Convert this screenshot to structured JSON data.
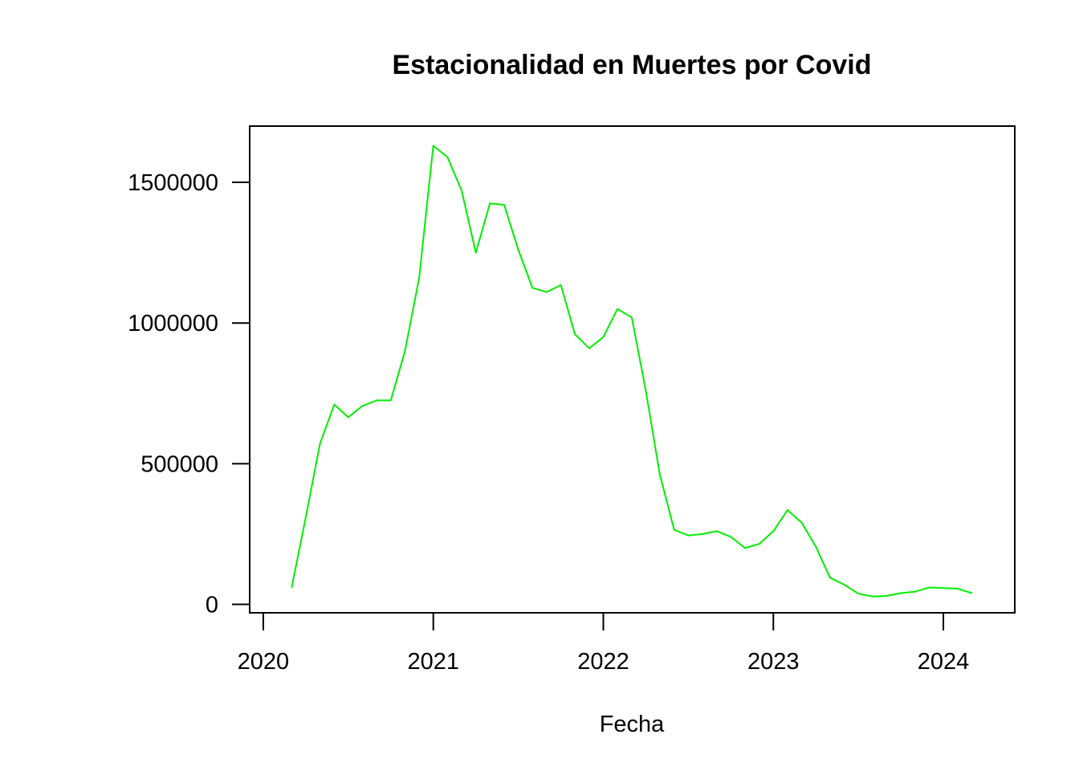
{
  "chart_data": {
    "type": "line",
    "title": "Estacionalidad en Muertes por Covid",
    "xlabel": "Fecha",
    "ylabel": "",
    "xlim": [
      2019.92,
      2024.42
    ],
    "ylim": [
      -30000,
      1700000
    ],
    "x_ticks": [
      2020,
      2021,
      2022,
      2023,
      2024
    ],
    "x_tick_labels": [
      "2020",
      "2021",
      "2022",
      "2023",
      "2024"
    ],
    "y_ticks": [
      0,
      500000,
      1000000,
      1500000
    ],
    "y_tick_labels": [
      "0",
      "500000",
      "1000000",
      "1500000"
    ],
    "grid": false,
    "series": [
      {
        "color": "#00ee00",
        "x": [
          2020.167,
          2020.25,
          2020.333,
          2020.417,
          2020.5,
          2020.583,
          2020.667,
          2020.75,
          2020.833,
          2020.917,
          2021.0,
          2021.083,
          2021.167,
          2021.25,
          2021.333,
          2021.417,
          2021.5,
          2021.583,
          2021.667,
          2021.75,
          2021.833,
          2021.917,
          2022.0,
          2022.083,
          2022.167,
          2022.25,
          2022.333,
          2022.417,
          2022.5,
          2022.583,
          2022.667,
          2022.75,
          2022.833,
          2022.917,
          2023.0,
          2023.083,
          2023.167,
          2023.25,
          2023.333,
          2023.417,
          2023.5,
          2023.583,
          2023.667,
          2023.75,
          2023.833,
          2023.917,
          2024.0,
          2024.083,
          2024.167
        ],
        "y": [
          60000,
          310000,
          570000,
          710000,
          665000,
          705000,
          725000,
          725000,
          900000,
          1160000,
          1630000,
          1590000,
          1470000,
          1250000,
          1425000,
          1420000,
          1260000,
          1125000,
          1110000,
          1135000,
          960000,
          910000,
          950000,
          1050000,
          1020000,
          760000,
          460000,
          265000,
          245000,
          250000,
          260000,
          240000,
          200000,
          215000,
          260000,
          335000,
          290000,
          205000,
          95000,
          70000,
          38000,
          28000,
          30000,
          40000,
          45000,
          60000,
          58000,
          56000,
          40000
        ]
      }
    ]
  }
}
